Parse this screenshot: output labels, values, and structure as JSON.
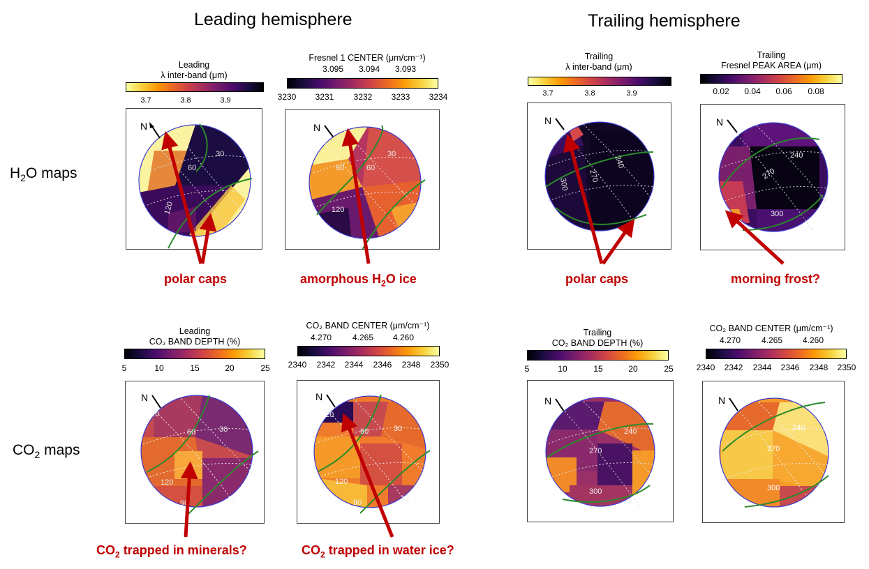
{
  "headers": {
    "leading": "Leading hemisphere",
    "trailing": "Trailing hemisphere"
  },
  "rows": {
    "h2o_a": "H",
    "h2o_sub": "2",
    "h2o_b": "O maps",
    "co2_a": "CO",
    "co2_sub": "2",
    "co2_b": " maps"
  },
  "colormaps": {
    "inferno": [
      "#000004",
      "#1b0c41",
      "#4a0c6b",
      "#781c6d",
      "#a52c60",
      "#cf4446",
      "#ed6925",
      "#fb9b06",
      "#f7d13d",
      "#fcffa4"
    ]
  },
  "panels": {
    "lead_h2o_band": {
      "cap1": "Leading",
      "cap2": "λ inter-band  (μm)",
      "ticks": [
        "3.7",
        "3.8",
        "3.9"
      ],
      "reversed": true,
      "grid": [
        "60",
        "30",
        "120"
      ]
    },
    "lead_h2o_fresnel": {
      "cap1": "Fresnel 1 CENTER (μm/cm⁻¹)",
      "top_ticks": [
        "3.095",
        "3.094",
        "3.093"
      ],
      "ticks": [
        "3230",
        "3231",
        "3232",
        "3233",
        "3234"
      ],
      "grid": [
        "90",
        "60",
        "30",
        "120"
      ]
    },
    "trail_h2o_band": {
      "cap1": "Trailing",
      "cap2": "λ inter-band  (μm)",
      "ticks": [
        "3.7",
        "3.8",
        "3.9"
      ],
      "reversed": true,
      "grid": [
        "240",
        "270",
        "300"
      ]
    },
    "trail_h2o_fresnel": {
      "cap1": "Trailing",
      "cap2": "Fresnel PEAK AREA  (μm)",
      "ticks": [
        "0.02",
        "0.04",
        "0.06",
        "0.08"
      ],
      "grid": [
        "240",
        "270",
        "300"
      ]
    },
    "lead_co2_depth": {
      "cap1": "Leading",
      "cap2": "CO₂ BAND DEPTH (%)",
      "ticks": [
        "5",
        "10",
        "15",
        "20",
        "25"
      ],
      "grid": [
        "20",
        "60",
        "30",
        "120",
        "90",
        "12"
      ]
    },
    "lead_co2_center": {
      "cap1": "CO₂ BAND CENTER (μm/cm⁻¹)",
      "top_ticks": [
        "4.270",
        "4.265",
        "4.260"
      ],
      "ticks": [
        "2340",
        "2342",
        "2344",
        "2346",
        "2348",
        "2350"
      ],
      "grid": [
        "20",
        "60",
        "30",
        "120",
        "90",
        "12"
      ]
    },
    "trail_co2_depth": {
      "cap1": "Trailing",
      "cap2": "CO₂ BAND DEPTH (%)",
      "ticks": [
        "5",
        "10",
        "15",
        "20",
        "25"
      ],
      "grid": [
        "240",
        "270",
        "300"
      ]
    },
    "trail_co2_center": {
      "cap1": "CO₂ BAND CENTER (μm/cm⁻¹)",
      "top_ticks": [
        "4.270",
        "4.265",
        "4.260"
      ],
      "ticks": [
        "2340",
        "2342",
        "2344",
        "2346",
        "2348",
        "2350"
      ],
      "grid": [
        "240",
        "270",
        "300"
      ]
    }
  },
  "north_label": "N",
  "annotations": {
    "polar_caps_lead": "polar caps",
    "amorphous_a": "amorphous H",
    "amorphous_sub": "2",
    "amorphous_b": "O ice",
    "polar_caps_trail": "polar caps",
    "morning_frost": "morning frost?",
    "minerals_a": "CO",
    "minerals_sub": "2",
    "minerals_b": " trapped in minerals?",
    "water_a": "CO",
    "water_sub": "2",
    "water_b": " trapped in water ice?"
  },
  "colors": {
    "annotation": "#c00000",
    "limb": "#3a3ad0",
    "green": "#2a8a2a"
  }
}
